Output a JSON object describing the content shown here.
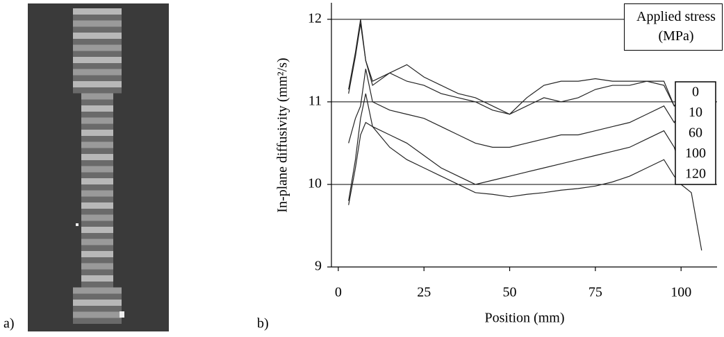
{
  "panel_labels": [
    "a)",
    "b)"
  ],
  "chart_data": {
    "type": "line",
    "xlabel": "Position (mm)",
    "ylabel": "In-plane diffusivity (mm²/s)",
    "legend_title": "Applied stress (MPa)",
    "x": [
      3,
      5,
      6.5,
      8,
      10,
      15,
      20,
      25,
      30,
      35,
      40,
      45,
      50,
      55,
      60,
      65,
      70,
      75,
      80,
      85,
      90,
      95,
      98,
      100,
      103,
      106
    ],
    "series": [
      {
        "name": "0",
        "color": "#222222",
        "values": [
          11.15,
          11.6,
          12.0,
          11.5,
          11.25,
          11.35,
          11.45,
          11.3,
          11.2,
          11.1,
          11.05,
          10.95,
          10.85,
          11.05,
          11.2,
          11.25,
          11.25,
          11.28,
          11.25,
          11.25,
          11.25,
          11.25,
          10.95,
          11.0,
          null,
          null
        ]
      },
      {
        "name": "10",
        "color": "#222222",
        "values": [
          11.1,
          11.55,
          11.95,
          11.5,
          11.2,
          11.35,
          11.25,
          11.2,
          11.1,
          11.05,
          11.0,
          10.9,
          10.85,
          10.95,
          11.05,
          11.0,
          11.05,
          11.15,
          11.2,
          11.2,
          11.25,
          11.2,
          10.95,
          11.05,
          null,
          null
        ]
      },
      {
        "name": "60",
        "color": "#222222",
        "values": [
          10.5,
          10.8,
          10.95,
          11.4,
          11.0,
          10.9,
          10.85,
          10.8,
          10.7,
          10.6,
          10.5,
          10.45,
          10.45,
          10.5,
          10.55,
          10.6,
          10.6,
          10.65,
          10.7,
          10.75,
          10.85,
          10.95,
          10.75,
          10.9,
          null,
          null
        ]
      },
      {
        "name": "100",
        "color": "#222222",
        "values": [
          9.8,
          10.3,
          10.8,
          11.1,
          10.7,
          10.6,
          10.5,
          10.35,
          10.2,
          10.1,
          10.0,
          10.05,
          10.1,
          10.15,
          10.2,
          10.25,
          10.3,
          10.35,
          10.4,
          10.45,
          10.55,
          10.65,
          10.45,
          10.2,
          10.0,
          null
        ]
      },
      {
        "name": "120",
        "color": "#222222",
        "values": [
          9.75,
          10.2,
          10.6,
          10.75,
          10.7,
          10.45,
          10.3,
          10.2,
          10.1,
          10.0,
          9.9,
          9.88,
          9.85,
          9.88,
          9.9,
          9.93,
          9.95,
          9.98,
          10.03,
          10.1,
          10.2,
          10.3,
          10.1,
          10.0,
          9.9,
          9.2
        ]
      }
    ],
    "xlim": [
      -2,
      110.5
    ],
    "ylim": [
      9,
      12.2
    ],
    "xticks": [
      0,
      25,
      50,
      75,
      100
    ],
    "yticks": [
      9,
      10,
      11,
      12
    ],
    "grid": true
  }
}
